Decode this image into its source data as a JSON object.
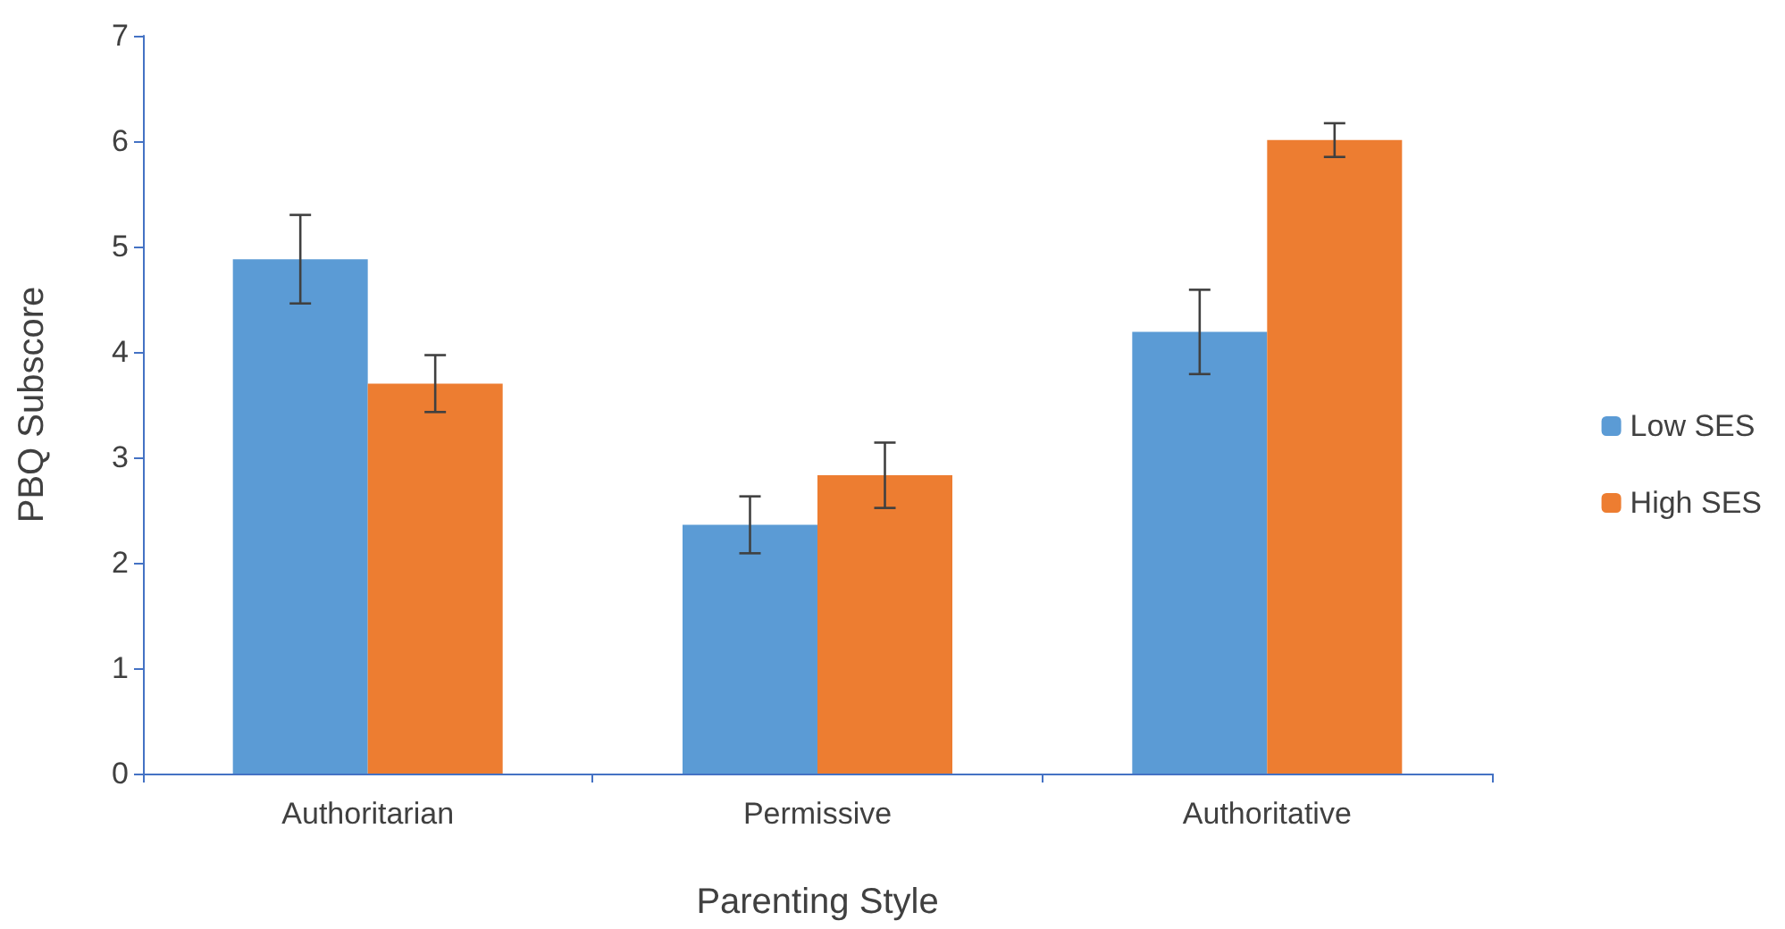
{
  "chart_data": {
    "type": "bar",
    "xlabel": "Parenting Style",
    "ylabel": "PBQ Subscore",
    "categories": [
      "Authoritarian",
      "Permissive",
      "Authoritative"
    ],
    "series": [
      {
        "name": "Low SES",
        "color": "#5b9bd5",
        "values": [
          4.88,
          2.36,
          4.19
        ],
        "errors": [
          0.42,
          0.27,
          0.4
        ]
      },
      {
        "name": "High SES",
        "color": "#ed7d31",
        "values": [
          3.7,
          2.83,
          6.01
        ],
        "errors": [
          0.27,
          0.31,
          0.16
        ]
      }
    ],
    "ylim": [
      0,
      7
    ],
    "yticks": [
      0,
      1,
      2,
      3,
      4,
      5,
      6,
      7
    ],
    "grid": false,
    "legend": "right"
  }
}
